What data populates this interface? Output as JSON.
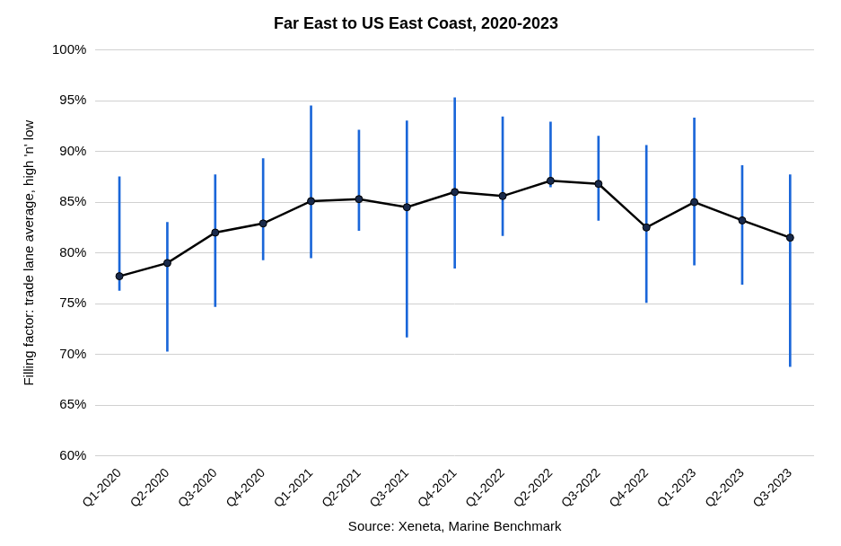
{
  "chart_data": {
    "type": "line",
    "title": "Far East to US East Coast, 2020-2023",
    "y_label": "Filling factor: trade lane average, high 'n' low",
    "x_label": "Source: Xeneta, Marine Benchmark",
    "categories": [
      "Q1-2020",
      "Q2-2020",
      "Q3-2020",
      "Q4-2020",
      "Q1-2021",
      "Q2-2021",
      "Q3-2021",
      "Q4-2021",
      "Q1-2022",
      "Q2-2022",
      "Q3-2022",
      "Q4-2022",
      "Q1-2023",
      "Q2-2023",
      "Q3-2023"
    ],
    "series": [
      {
        "values": [
          77.7,
          79.0,
          82.0,
          82.9,
          85.1,
          85.3,
          84.5,
          86.0,
          85.6,
          87.1,
          86.8,
          82.5,
          85.0,
          83.2,
          81.5
        ],
        "color": "#000000",
        "marker": "circle",
        "error_bars": {
          "high": [
            87.5,
            83.0,
            87.7,
            89.3,
            94.5,
            92.1,
            93.0,
            95.3,
            93.4,
            92.9,
            91.5,
            90.6,
            93.3,
            88.6,
            87.7
          ],
          "low": [
            76.3,
            70.3,
            74.7,
            79.3,
            79.5,
            82.2,
            71.7,
            78.5,
            81.7,
            86.5,
            83.2,
            75.1,
            78.8,
            76.9,
            68.8
          ],
          "color": "#1a66d9"
        }
      }
    ],
    "ylim": [
      60,
      100
    ],
    "yticks": [
      {
        "value": 60,
        "label": "60%"
      },
      {
        "value": 65,
        "label": "65%"
      },
      {
        "value": 70,
        "label": "70%"
      },
      {
        "value": 75,
        "label": "75%"
      },
      {
        "value": 80,
        "label": "80%"
      },
      {
        "value": 85,
        "label": "85%"
      },
      {
        "value": 90,
        "label": "90%"
      },
      {
        "value": 95,
        "label": "95%"
      },
      {
        "value": 100,
        "label": "100%"
      }
    ],
    "grid": true
  }
}
